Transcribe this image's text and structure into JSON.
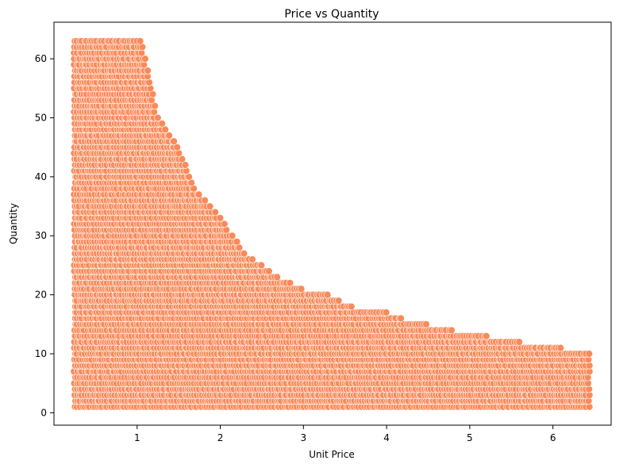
{
  "chart_data": {
    "type": "scatter",
    "title": "Price vs Quantity",
    "xlabel": "Unit Price",
    "ylabel": "Quantity",
    "xlim": [
      0.0,
      6.7
    ],
    "ylim": [
      -2.1,
      66.2
    ],
    "xticks": [
      1,
      2,
      3,
      4,
      5,
      6
    ],
    "yticks": [
      0,
      10,
      20,
      30,
      40,
      50,
      60
    ],
    "grid": false,
    "legend": "none",
    "marker_color": "#FA8A5A",
    "marker_edge_color": "#ffffff",
    "point_cloud": {
      "quantity_range": [
        1,
        63
      ],
      "unit_price_min": 0.25,
      "upper_boundary": [
        [
          1.05,
          63
        ],
        [
          1.25,
          50
        ],
        [
          1.5,
          45
        ],
        [
          1.7,
          38
        ],
        [
          2.0,
          33
        ],
        [
          2.3,
          27
        ],
        [
          2.7,
          23
        ],
        [
          3.0,
          21
        ],
        [
          3.3,
          20
        ],
        [
          3.6,
          18
        ],
        [
          4.0,
          17
        ],
        [
          4.2,
          16
        ],
        [
          4.5,
          15
        ],
        [
          4.8,
          14
        ],
        [
          5.2,
          13
        ],
        [
          5.6,
          12
        ],
        [
          6.1,
          11
        ],
        [
          6.45,
          10
        ]
      ]
    }
  }
}
